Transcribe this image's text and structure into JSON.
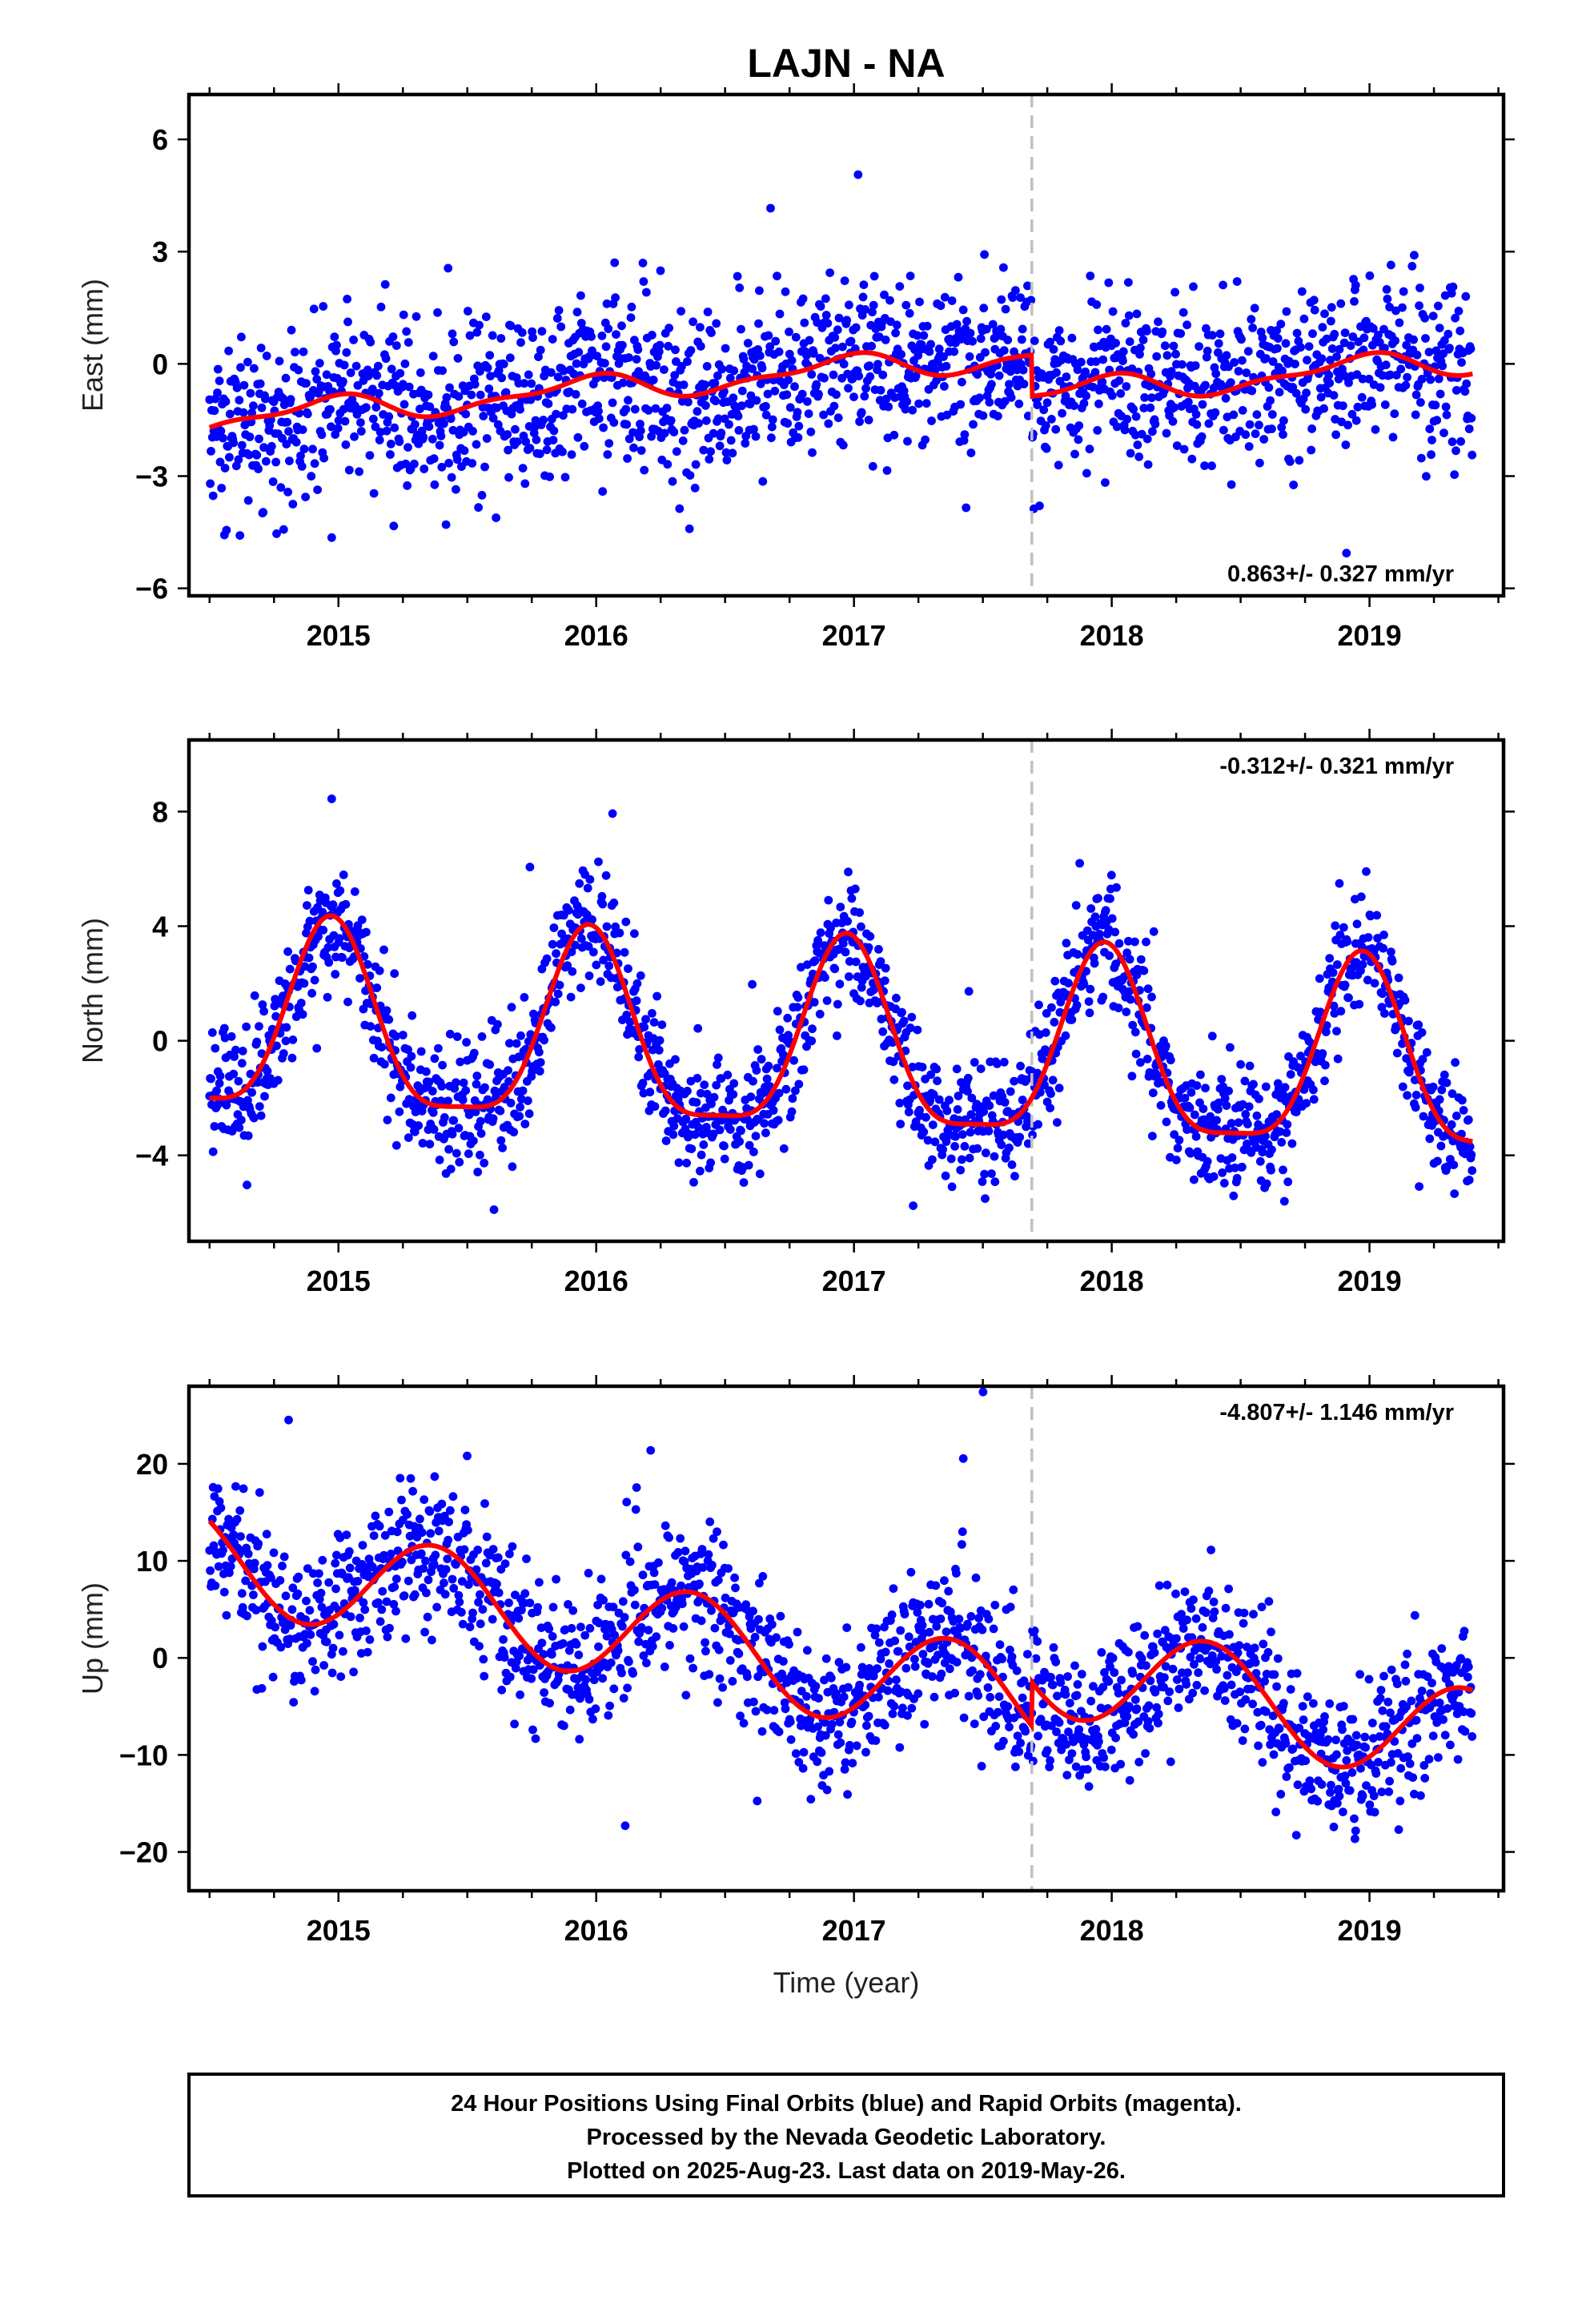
{
  "title": "LAJN - NA",
  "xlabel": "Time (year)",
  "footer": [
    "24 Hour Positions Using Final Orbits (blue) and Rapid Orbits (magenta).",
    "Processed by the Nevada Geodetic Laboratory.",
    "Plotted on 2025-Aug-23. Last data on 2019-May-26."
  ],
  "colors": {
    "final_orbits": "#0000ff",
    "fit": "#ff0000",
    "event_line": "#c0c0c0"
  },
  "chart_data": [
    {
      "type": "scatter",
      "ylabel": "East (mm)",
      "rate_label": "0.863+/- 0.327 mm/yr",
      "rate_position": "bottom-right",
      "xlim": [
        2014.42,
        2019.52
      ],
      "ylim": [
        -6.2,
        7.2
      ],
      "xticks": [
        2015,
        2016,
        2017,
        2018,
        2019
      ],
      "yticks": [
        -6,
        -3,
        0,
        3,
        6
      ],
      "ytick_labels": [
        "−6",
        "−3",
        "0",
        "3",
        "6"
      ],
      "event_line_x": 2017.69,
      "series": [
        {
          "type": "scatter",
          "trend": {
            "start": 2014.5,
            "end": 2019.4,
            "y_start": -1.5,
            "y_end": 1.2,
            "rate": 0.863,
            "step_at": 2017.69,
            "step": -1.1,
            "noise": 1.1
          },
          "annual": [
            -0.1,
            0.3
          ],
          "semiannual": [
            0.1,
            0.1
          ]
        },
        {
          "type": "line",
          "description": "model fit"
        }
      ]
    },
    {
      "type": "scatter",
      "ylabel": "North (mm)",
      "rate_label": "-0.312+/- 0.321 mm/yr",
      "rate_position": "top-right",
      "xlim": [
        2014.42,
        2019.52
      ],
      "ylim": [
        -7.0,
        10.5
      ],
      "xticks": [
        2015,
        2016,
        2017,
        2018,
        2019
      ],
      "yticks": [
        -4,
        0,
        4,
        8
      ],
      "ytick_labels": [
        "−4",
        "0",
        "4",
        "8"
      ],
      "event_line_x": 2017.69,
      "series": [
        {
          "type": "scatter",
          "trend": {
            "start": 2014.5,
            "end": 2019.4,
            "y_start": 0.4,
            "y_end": -1.1,
            "rate": -0.312,
            "step_at": 2017.69,
            "step": 0.0,
            "noise": 1.1
          },
          "annual": [
            -0.6,
            3.2
          ],
          "semiannual": [
            -0.3,
            0.8
          ]
        },
        {
          "type": "line",
          "description": "model fit"
        }
      ]
    },
    {
      "type": "scatter",
      "ylabel": "Up (mm)",
      "rate_label": "-4.807+/- 1.146 mm/yr",
      "rate_position": "top-right",
      "xlim": [
        2014.42,
        2019.52
      ],
      "ylim": [
        -24.0,
        28.0
      ],
      "xticks": [
        2015,
        2016,
        2017,
        2018,
        2019
      ],
      "yticks": [
        -20,
        -10,
        0,
        10,
        20
      ],
      "ytick_labels": [
        "−20",
        "−10",
        "0",
        "10",
        "20"
      ],
      "event_line_x": 2017.69,
      "series": [
        {
          "type": "scatter",
          "trend": {
            "start": 2014.5,
            "end": 2019.4,
            "y_start": 10.5,
            "y_end": -13.0,
            "rate": -4.807,
            "step_at": 2017.69,
            "step": 4.5,
            "noise": 3.8
          },
          "annual": [
            3.8,
            -3.6
          ],
          "semiannual": [
            0.0,
            0.0
          ]
        },
        {
          "type": "line",
          "description": "model fit"
        }
      ]
    }
  ]
}
